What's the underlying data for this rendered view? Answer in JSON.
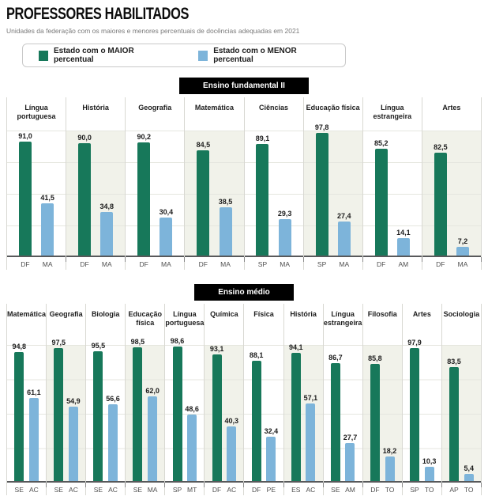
{
  "header": {
    "title": "PROFESSORES HABILITADOS",
    "subtitle": "Unidades da federação com os maiores e menores percentuais de docências adequadas em 2021"
  },
  "legend": {
    "max_label": "Estado com o MAIOR percentual",
    "min_label": "Estado com o MENOR percentual"
  },
  "colors": {
    "max": "#17785a",
    "min": "#7db4da",
    "badge_bg": "#000000",
    "badge_text": "#ffffff",
    "shaded_column": "#f1f2ea"
  },
  "chart_data": [
    {
      "type": "bar",
      "title": "Ensino fundamental II",
      "ylim": [
        0,
        100
      ],
      "grid": true,
      "legend_position": "top",
      "series_names": [
        "Estado com o MAIOR percentual",
        "Estado com o MENOR percentual"
      ],
      "groups": [
        {
          "subject": "Língua portuguesa",
          "max_state": "DF",
          "max_value": 91.0,
          "max_label": "91,0",
          "min_state": "MA",
          "min_value": 41.5,
          "min_label": "41,5"
        },
        {
          "subject": "História",
          "max_state": "DF",
          "max_value": 90.0,
          "max_label": "90,0",
          "min_state": "MA",
          "min_value": 34.8,
          "min_label": "34,8"
        },
        {
          "subject": "Geografia",
          "max_state": "DF",
          "max_value": 90.2,
          "max_label": "90,2",
          "min_state": "MA",
          "min_value": 30.4,
          "min_label": "30,4"
        },
        {
          "subject": "Matemática",
          "max_state": "DF",
          "max_value": 84.5,
          "max_label": "84,5",
          "min_state": "MA",
          "min_value": 38.5,
          "min_label": "38,5"
        },
        {
          "subject": "Ciências",
          "max_state": "SP",
          "max_value": 89.1,
          "max_label": "89,1",
          "min_state": "MA",
          "min_value": 29.3,
          "min_label": "29,3"
        },
        {
          "subject": "Educação física",
          "max_state": "SP",
          "max_value": 97.8,
          "max_label": "97,8",
          "min_state": "MA",
          "min_value": 27.4,
          "min_label": "27,4"
        },
        {
          "subject": "Língua estrangeira",
          "max_state": "DF",
          "max_value": 85.2,
          "max_label": "85,2",
          "min_state": "AM",
          "min_value": 14.1,
          "min_label": "14,1"
        },
        {
          "subject": "Artes",
          "max_state": "DF",
          "max_value": 82.5,
          "max_label": "82,5",
          "min_state": "MA",
          "min_value": 7.2,
          "min_label": "7,2"
        }
      ]
    },
    {
      "type": "bar",
      "title": "Ensino médio",
      "ylim": [
        0,
        100
      ],
      "grid": true,
      "legend_position": "top",
      "series_names": [
        "Estado com o MAIOR percentual",
        "Estado com o MENOR percentual"
      ],
      "groups": [
        {
          "subject": "Matemática",
          "max_state": "SE",
          "max_value": 94.8,
          "max_label": "94,8",
          "min_state": "AC",
          "min_value": 61.1,
          "min_label": "61,1"
        },
        {
          "subject": "Geografia",
          "max_state": "SE",
          "max_value": 97.5,
          "max_label": "97,5",
          "min_state": "AC",
          "min_value": 54.9,
          "min_label": "54,9"
        },
        {
          "subject": "Biologia",
          "max_state": "SE",
          "max_value": 95.5,
          "max_label": "95,5",
          "min_state": "AC",
          "min_value": 56.6,
          "min_label": "56,6"
        },
        {
          "subject": "Educação física",
          "max_state": "SE",
          "max_value": 98.5,
          "max_label": "98,5",
          "min_state": "MA",
          "min_value": 62.0,
          "min_label": "62,0"
        },
        {
          "subject": "Língua portuguesa",
          "max_state": "SP",
          "max_value": 98.6,
          "max_label": "98,6",
          "min_state": "MT",
          "min_value": 48.6,
          "min_label": "48,6"
        },
        {
          "subject": "Química",
          "max_state": "DF",
          "max_value": 93.1,
          "max_label": "93,1",
          "min_state": "AC",
          "min_value": 40.3,
          "min_label": "40,3"
        },
        {
          "subject": "Física",
          "max_state": "DF",
          "max_value": 88.1,
          "max_label": "88,1",
          "min_state": "PE",
          "min_value": 32.4,
          "min_label": "32,4"
        },
        {
          "subject": "História",
          "max_state": "ES",
          "max_value": 94.1,
          "max_label": "94,1",
          "min_state": "AC",
          "min_value": 57.1,
          "min_label": "57,1"
        },
        {
          "subject": "Língua estrangeira",
          "max_state": "SE",
          "max_value": 86.7,
          "max_label": "86,7",
          "min_state": "AM",
          "min_value": 27.7,
          "min_label": "27,7"
        },
        {
          "subject": "Filosofia",
          "max_state": "DF",
          "max_value": 85.8,
          "max_label": "85,8",
          "min_state": "TO",
          "min_value": 18.2,
          "min_label": "18,2"
        },
        {
          "subject": "Artes",
          "max_state": "SP",
          "max_value": 97.9,
          "max_label": "97,9",
          "min_state": "TO",
          "min_value": 10.3,
          "min_label": "10,3"
        },
        {
          "subject": "Sociologia",
          "max_state": "AP",
          "max_value": 83.5,
          "max_label": "83,5",
          "min_state": "TO",
          "min_value": 5.4,
          "min_label": "5,4"
        }
      ]
    }
  ]
}
